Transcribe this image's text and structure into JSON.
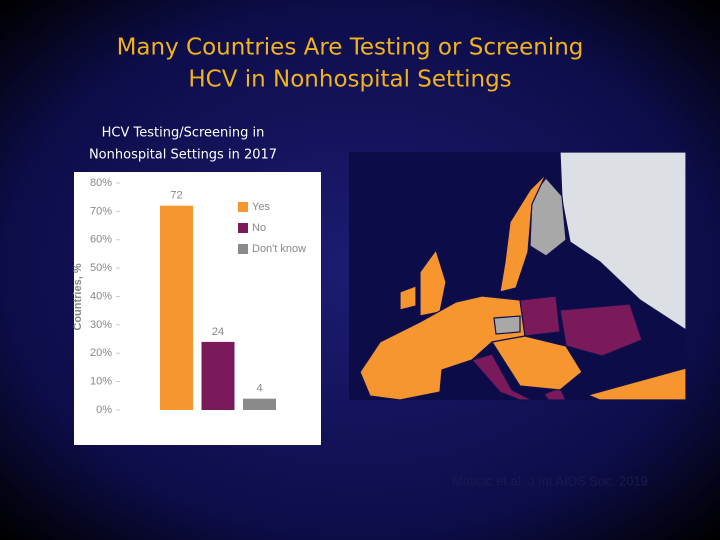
{
  "title": [
    "Many Countries Are Testing or Screening",
    "HCV in Nonhospital Settings"
  ],
  "subtitle": [
    "HCV Testing/Screening in",
    "Nonhospital Settings in 2017"
  ],
  "source": "Maticic et al. J Int AIDS Soc. 2019",
  "chart_data": {
    "type": "bar",
    "y_label": "Countries, %",
    "categories": [
      null
    ],
    "series": [
      {
        "name": "Yes",
        "color": "#f7962f",
        "values": [
          72
        ]
      },
      {
        "name": "No",
        "color": "#7b1a5b",
        "values": [
          24
        ]
      },
      {
        "name": "Don't know",
        "color": "#8a8a8a",
        "values": [
          4
        ]
      }
    ],
    "ylim": [
      0,
      80
    ],
    "yticks": [
      {
        "value": 0,
        "label": "0%"
      },
      {
        "value": 10,
        "label": "10%"
      },
      {
        "value": 20,
        "label": "20%"
      },
      {
        "value": 30,
        "label": "30%"
      },
      {
        "value": 40,
        "label": "40%"
      },
      {
        "value": 50,
        "label": "50%"
      },
      {
        "value": 60,
        "label": "60%"
      },
      {
        "value": 70,
        "label": "70%"
      },
      {
        "value": 80,
        "label": "80%"
      }
    ],
    "legend": "right"
  }
}
